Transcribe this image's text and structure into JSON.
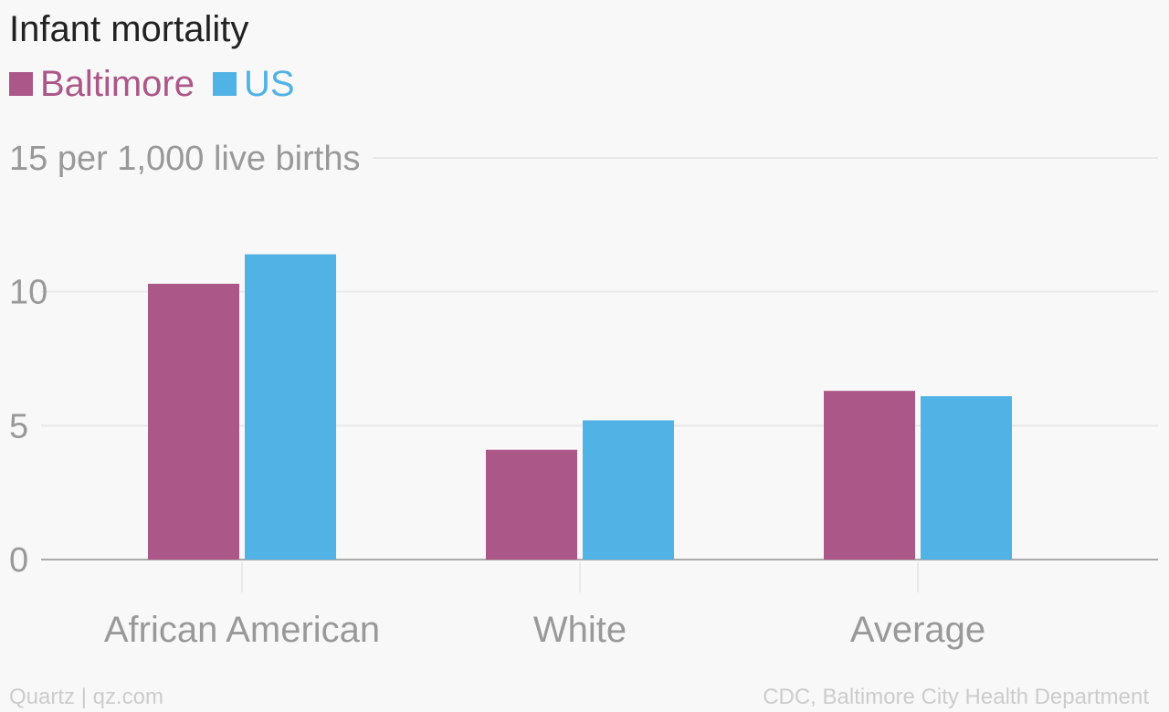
{
  "colors": {
    "baltimore": "#ab5787",
    "us": "#51b2e5"
  },
  "chart_data": {
    "type": "bar",
    "title": "Infant mortality",
    "ylabel": "per 1,000 live births",
    "categories": [
      "African American",
      "White",
      "Average"
    ],
    "series": [
      {
        "name": "Baltimore",
        "values": [
          10.3,
          4.1,
          6.3
        ]
      },
      {
        "name": "US",
        "values": [
          11.4,
          5.2,
          6.1
        ]
      }
    ],
    "ylim": [
      0,
      15
    ],
    "yticks": [
      0,
      5,
      10,
      15
    ],
    "ytick_labels": [
      "0",
      "5",
      "10",
      "15 per 1,000 live births"
    ],
    "grid": true,
    "legend_position": "top-left"
  },
  "footer": {
    "credit": "Quartz | qz.com",
    "source": "CDC, Baltimore City Health Department"
  }
}
